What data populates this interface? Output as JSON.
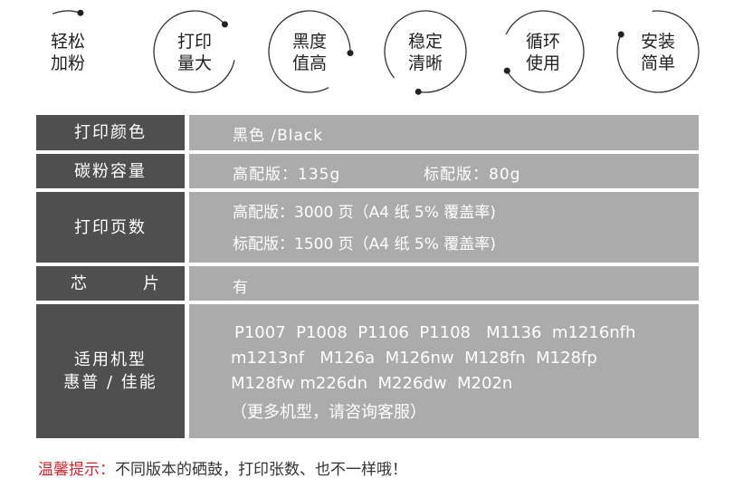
{
  "features": [
    {
      "line1": "轻松",
      "line2": "加粉"
    },
    {
      "line1": "打印",
      "line2": "量大"
    },
    {
      "line1": "黑度",
      "line2": "值高"
    },
    {
      "line1": "稳定",
      "line2": "清晰"
    },
    {
      "line1": "循环",
      "line2": "使用"
    },
    {
      "line1": "安装",
      "line2": "简单"
    }
  ],
  "table": {
    "color": {
      "label": "打印颜色",
      "value": "黑色 /Black"
    },
    "capacity": {
      "label": "碳粉容量",
      "high": "高配版：135g",
      "standard": "标配版：80g"
    },
    "pages": {
      "label": "打印页数",
      "high": "高配版：3000 页（A4 纸 5% 覆盖率)",
      "standard": "标配版：1500 页（A4 纸 5% 覆盖率)"
    },
    "chip": {
      "label_left": "芯",
      "label_right": "片",
      "value": "有"
    },
    "models": {
      "label1": "适用机型",
      "label2": "惠普 / 佳能",
      "lines": [
        "P1007  P1008  P1106  P1108   M1136  m1216nfh",
        "m1213nf   M126a  M126nw  M128fn  M128fp",
        "M128fw m226dn  M226dw  M202n",
        "（更多机型，请咨询客服）"
      ]
    }
  },
  "tip": {
    "prefix": "温馨提示：",
    "text": "不同版本的硒鼓，打印张数、也不一样哦！"
  },
  "colors": {
    "label_bg": "#4f4f4f",
    "value_bg": "#ababab",
    "tip_red": "#d9232d"
  }
}
